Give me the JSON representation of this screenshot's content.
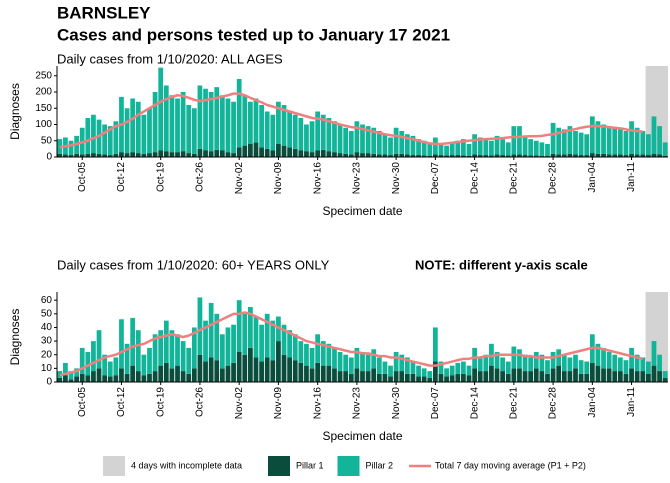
{
  "title": "BARNSLEY",
  "subtitle": "Cases and persons tested up to January 17 2021",
  "x_label": "Specimen date",
  "y_label": "Diagnoses",
  "shade": {
    "label": "4 days with incomplete data",
    "days": 4,
    "color": "#d3d3d3"
  },
  "chart_data": [
    {
      "type": "bar",
      "stacked": true,
      "title": "Daily cases from 1/10/2020: ALL AGES",
      "categories": [
        null,
        null,
        null,
        null,
        "Oct-05",
        null,
        null,
        null,
        null,
        null,
        null,
        "Oct-12",
        null,
        null,
        null,
        null,
        null,
        null,
        "Oct-19",
        null,
        null,
        null,
        null,
        null,
        null,
        "Oct-26",
        null,
        null,
        null,
        null,
        null,
        null,
        "Nov-02",
        null,
        null,
        null,
        null,
        null,
        null,
        "Nov-09",
        null,
        null,
        null,
        null,
        null,
        null,
        "Nov-16",
        null,
        null,
        null,
        null,
        null,
        null,
        "Nov-23",
        null,
        null,
        null,
        null,
        null,
        null,
        "Nov-30",
        null,
        null,
        null,
        null,
        null,
        null,
        "Dec-07",
        null,
        null,
        null,
        null,
        null,
        null,
        "Dec-14",
        null,
        null,
        null,
        null,
        null,
        null,
        "Dec-21",
        null,
        null,
        null,
        null,
        null,
        null,
        "Dec-28",
        null,
        null,
        null,
        null,
        null,
        null,
        "Jan-04",
        null,
        null,
        null,
        null,
        null,
        null,
        "Jan-11",
        null,
        null,
        null,
        null,
        null,
        null
      ],
      "ylim": [
        0,
        280
      ],
      "yticks": [
        0,
        50,
        100,
        150,
        200,
        250
      ],
      "series": [
        {
          "name": "Pillar 1",
          "color": "#0b4d3c",
          "values": [
            10,
            8,
            6,
            10,
            8,
            10,
            12,
            10,
            8,
            6,
            10,
            15,
            12,
            15,
            12,
            10,
            12,
            15,
            20,
            18,
            15,
            15,
            18,
            12,
            10,
            25,
            20,
            18,
            22,
            20,
            15,
            12,
            30,
            35,
            40,
            45,
            30,
            25,
            20,
            40,
            35,
            30,
            25,
            20,
            18,
            15,
            20,
            22,
            18,
            15,
            12,
            10,
            8,
            15,
            12,
            12,
            10,
            8,
            8,
            6,
            10,
            10,
            8,
            6,
            6,
            5,
            4,
            8,
            6,
            5,
            6,
            6,
            5,
            4,
            8,
            6,
            6,
            5,
            8,
            6,
            5,
            8,
            8,
            6,
            5,
            5,
            4,
            4,
            10,
            8,
            8,
            10,
            8,
            6,
            6,
            12,
            10,
            10,
            8,
            8,
            8,
            6,
            10,
            8,
            8,
            6,
            10,
            8,
            4
          ]
        },
        {
          "name": "Pillar 2",
          "color": "#13b59a",
          "values": [
            45,
            52,
            44,
            55,
            82,
            110,
            118,
            105,
            92,
            89,
            100,
            170,
            138,
            165,
            158,
            120,
            138,
            185,
            255,
            202,
            175,
            165,
            182,
            148,
            140,
            195,
            190,
            182,
            193,
            170,
            165,
            158,
            210,
            155,
            130,
            135,
            130,
            115,
            110,
            130,
            125,
            110,
            105,
            100,
            82,
            95,
            120,
            108,
            102,
            95,
            88,
            80,
            72,
            95,
            88,
            83,
            80,
            72,
            62,
            54,
            80,
            70,
            62,
            59,
            49,
            45,
            41,
            52,
            34,
            30,
            39,
            44,
            50,
            36,
            62,
            54,
            49,
            45,
            57,
            49,
            40,
            87,
            87,
            54,
            50,
            45,
            41,
            36,
            95,
            82,
            77,
            85,
            72,
            69,
            64,
            113,
            100,
            90,
            87,
            82,
            77,
            74,
            100,
            82,
            72,
            64,
            115,
            87,
            41
          ]
        },
        {
          "name": "Total 7 day moving average (P1 + P2)",
          "type": "line",
          "color": "#f08080",
          "values": [
            30,
            33,
            36,
            40,
            45,
            50,
            58,
            65,
            75,
            85,
            95,
            100,
            108,
            118,
            130,
            140,
            150,
            160,
            170,
            178,
            185,
            190,
            188,
            182,
            176,
            172,
            175,
            178,
            182,
            186,
            190,
            195,
            195,
            190,
            182,
            175,
            168,
            160,
            155,
            150,
            145,
            140,
            135,
            130,
            125,
            120,
            118,
            115,
            110,
            105,
            100,
            96,
            92,
            90,
            86,
            82,
            78,
            74,
            70,
            67,
            65,
            62,
            58,
            55,
            50,
            46,
            42,
            40,
            40,
            42,
            44,
            46,
            48,
            50,
            52,
            54,
            55,
            56,
            57,
            58,
            60,
            62,
            62,
            63,
            64,
            64,
            65,
            68,
            70,
            74,
            78,
            82,
            86,
            90,
            93,
            95,
            95,
            94,
            92,
            90,
            88,
            85,
            82,
            80,
            78,
            null,
            null,
            null,
            null
          ]
        }
      ]
    },
    {
      "type": "bar",
      "stacked": true,
      "title": "Daily cases from 1/10/2020: 60+ YEARS ONLY",
      "note": "NOTE: different y-axis scale",
      "categories": [
        null,
        null,
        null,
        null,
        "Oct-05",
        null,
        null,
        null,
        null,
        null,
        null,
        "Oct-12",
        null,
        null,
        null,
        null,
        null,
        null,
        "Oct-19",
        null,
        null,
        null,
        null,
        null,
        null,
        "Oct-26",
        null,
        null,
        null,
        null,
        null,
        null,
        "Nov-02",
        null,
        null,
        null,
        null,
        null,
        null,
        "Nov-09",
        null,
        null,
        null,
        null,
        null,
        null,
        "Nov-16",
        null,
        null,
        null,
        null,
        null,
        null,
        "Nov-23",
        null,
        null,
        null,
        null,
        null,
        null,
        "Nov-30",
        null,
        null,
        null,
        null,
        null,
        null,
        "Dec-07",
        null,
        null,
        null,
        null,
        null,
        null,
        "Dec-14",
        null,
        null,
        null,
        null,
        null,
        null,
        "Dec-21",
        null,
        null,
        null,
        null,
        null,
        null,
        "Dec-28",
        null,
        null,
        null,
        null,
        null,
        null,
        "Jan-04",
        null,
        null,
        null,
        null,
        null,
        null,
        "Jan-11",
        null,
        null,
        null,
        null,
        null,
        null
      ],
      "ylim": [
        0,
        66
      ],
      "yticks": [
        0,
        10,
        20,
        30,
        40,
        50,
        60
      ],
      "series": [
        {
          "color": "#0b4d3c",
          "values": [
            3,
            5,
            2,
            4,
            6,
            5,
            8,
            10,
            5,
            4,
            5,
            10,
            6,
            12,
            8,
            5,
            6,
            8,
            12,
            14,
            10,
            12,
            8,
            6,
            10,
            20,
            15,
            18,
            16,
            10,
            12,
            14,
            22,
            20,
            25,
            18,
            15,
            18,
            16,
            30,
            20,
            18,
            16,
            14,
            12,
            10,
            14,
            12,
            12,
            10,
            8,
            8,
            6,
            10,
            8,
            8,
            10,
            6,
            6,
            4,
            8,
            8,
            6,
            6,
            4,
            4,
            3,
            15,
            6,
            4,
            5,
            6,
            6,
            5,
            10,
            8,
            8,
            12,
            10,
            8,
            6,
            10,
            10,
            8,
            8,
            10,
            8,
            6,
            10,
            12,
            8,
            8,
            10,
            6,
            6,
            14,
            12,
            10,
            10,
            8,
            8,
            6,
            10,
            8,
            8,
            6,
            12,
            8,
            3
          ]
        },
        {
          "color": "#13b59a",
          "values": [
            5,
            9,
            6,
            6,
            19,
            17,
            22,
            28,
            15,
            11,
            13,
            36,
            22,
            35,
            30,
            15,
            19,
            27,
            26,
            31,
            28,
            23,
            22,
            19,
            30,
            42,
            30,
            40,
            34,
            25,
            28,
            28,
            38,
            30,
            30,
            30,
            27,
            32,
            29,
            18,
            22,
            20,
            19,
            16,
            16,
            15,
            21,
            18,
            16,
            15,
            14,
            12,
            12,
            15,
            14,
            12,
            14,
            12,
            9,
            8,
            14,
            12,
            12,
            9,
            8,
            6,
            5,
            25,
            9,
            6,
            7,
            8,
            9,
            7,
            15,
            10,
            12,
            16,
            12,
            10,
            9,
            16,
            14,
            12,
            10,
            12,
            12,
            10,
            12,
            12,
            12,
            10,
            10,
            10,
            9,
            21,
            16,
            15,
            12,
            12,
            10,
            10,
            15,
            12,
            10,
            9,
            18,
            12,
            5
          ]
        },
        {
          "type": "line",
          "color": "#f08080",
          "values": [
            5,
            6,
            7,
            8,
            10,
            12,
            14,
            16,
            18,
            19,
            20,
            22,
            24,
            26,
            27,
            28,
            30,
            32,
            33,
            34,
            35,
            34,
            33,
            34,
            36,
            38,
            40,
            42,
            44,
            46,
            48,
            50,
            50,
            51,
            50,
            48,
            46,
            44,
            42,
            40,
            38,
            36,
            34,
            32,
            30,
            29,
            28,
            27,
            26,
            25,
            24,
            23,
            22,
            22,
            21,
            21,
            20,
            19,
            19,
            18,
            18,
            17,
            16,
            15,
            14,
            13,
            12,
            12,
            13,
            14,
            15,
            16,
            17,
            17,
            18,
            18,
            19,
            19,
            20,
            20,
            20,
            20,
            20,
            19,
            19,
            18,
            18,
            18,
            18,
            19,
            20,
            21,
            22,
            23,
            24,
            25,
            25,
            24,
            23,
            22,
            21,
            20,
            19,
            18,
            17,
            null,
            null,
            null,
            null
          ]
        }
      ]
    }
  ]
}
